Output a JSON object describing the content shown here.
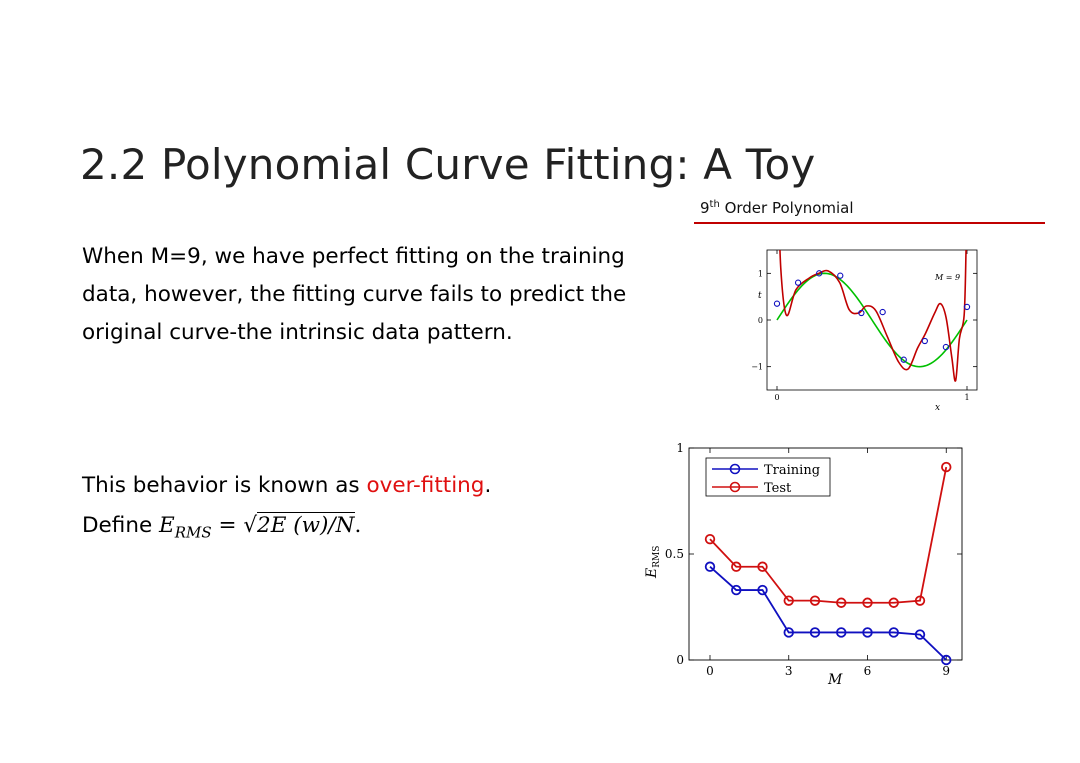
{
  "slide": {
    "title": "2.2 Polynomial Curve Fitting: A Toy",
    "caption_prefix": "9",
    "caption_sup": "th",
    "caption_rest": " Order Polynomial",
    "paragraph1": "When M=9, we have perfect fitting on the training data, however, the fitting curve fails to predict the original curve-the intrinsic data pattern.",
    "p2_line1_a": "This behavior is known as ",
    "p2_line1_red": "over-fitting",
    "p2_line1_b": ".",
    "p2_define": "Define ",
    "p2_formula_lhs_E": "E",
    "p2_formula_lhs_sub": "RMS",
    "p2_formula_eq": " = ",
    "p2_formula_sqrt": "√",
    "p2_formula_inner": "2E (w)/N",
    "p2_formula_end": "."
  },
  "chart_data": [
    {
      "type": "line",
      "title": "",
      "annotation": "M = 9",
      "xlabel": "x",
      "ylabel": "t",
      "xlim": [
        0,
        1
      ],
      "ylim": [
        -1.5,
        1.5
      ],
      "x_ticks": [
        "0",
        "1"
      ],
      "y_ticks": [
        "−1",
        "0",
        "1"
      ],
      "series": [
        {
          "color": "#00c000",
          "function": "sin(2*pi*x)",
          "values": [
            [
              0,
              0
            ],
            [
              0.25,
              1
            ],
            [
              0.5,
              0
            ],
            [
              0.75,
              -1
            ],
            [
              1,
              0
            ]
          ]
        },
        {
          "color": "#c00000",
          "values": [
            [
              0.005,
              3.0
            ],
            [
              0.02,
              1.1
            ],
            [
              0.05,
              0.1
            ],
            [
              0.1,
              0.65
            ],
            [
              0.17,
              0.9
            ],
            [
              0.22,
              1.0
            ],
            [
              0.27,
              1.05
            ],
            [
              0.33,
              0.8
            ],
            [
              0.38,
              0.22
            ],
            [
              0.43,
              0.15
            ],
            [
              0.47,
              0.3
            ],
            [
              0.52,
              0.2
            ],
            [
              0.58,
              -0.35
            ],
            [
              0.64,
              -0.9
            ],
            [
              0.69,
              -1.05
            ],
            [
              0.74,
              -0.6
            ],
            [
              0.78,
              -0.3
            ],
            [
              0.83,
              0.15
            ],
            [
              0.86,
              0.35
            ],
            [
              0.89,
              0.05
            ],
            [
              0.92,
              -0.8
            ],
            [
              0.94,
              -1.3
            ],
            [
              0.96,
              -0.4
            ],
            [
              0.985,
              0.1
            ],
            [
              0.995,
              1.5
            ]
          ]
        }
      ],
      "points": {
        "color": "#1010c0",
        "x": [
          0,
          0.111,
          0.222,
          0.333,
          0.444,
          0.556,
          0.667,
          0.778,
          0.889,
          1.0
        ],
        "y": [
          0.35,
          0.8,
          1.0,
          0.95,
          0.15,
          0.17,
          -0.85,
          -0.45,
          -0.58,
          0.28
        ]
      }
    },
    {
      "type": "line",
      "title": "",
      "xlabel": "M",
      "ylabel": "E_RMS",
      "xlim": [
        -0.8,
        9.6
      ],
      "ylim": [
        0,
        1
      ],
      "x_ticks": [
        "0",
        "3",
        "6",
        "9"
      ],
      "y_ticks": [
        "0",
        "0.5",
        "1"
      ],
      "categories": [
        0,
        1,
        2,
        3,
        4,
        5,
        6,
        7,
        8,
        9
      ],
      "legend_position": "top-left",
      "series": [
        {
          "name": "Training",
          "color": "#1010c0",
          "values": [
            0.44,
            0.33,
            0.33,
            0.13,
            0.13,
            0.13,
            0.13,
            0.13,
            0.12,
            0.0
          ]
        },
        {
          "name": "Test",
          "color": "#d01010",
          "values": [
            0.57,
            0.44,
            0.44,
            0.28,
            0.28,
            0.27,
            0.27,
            0.27,
            0.28,
            0.91
          ]
        }
      ]
    }
  ]
}
